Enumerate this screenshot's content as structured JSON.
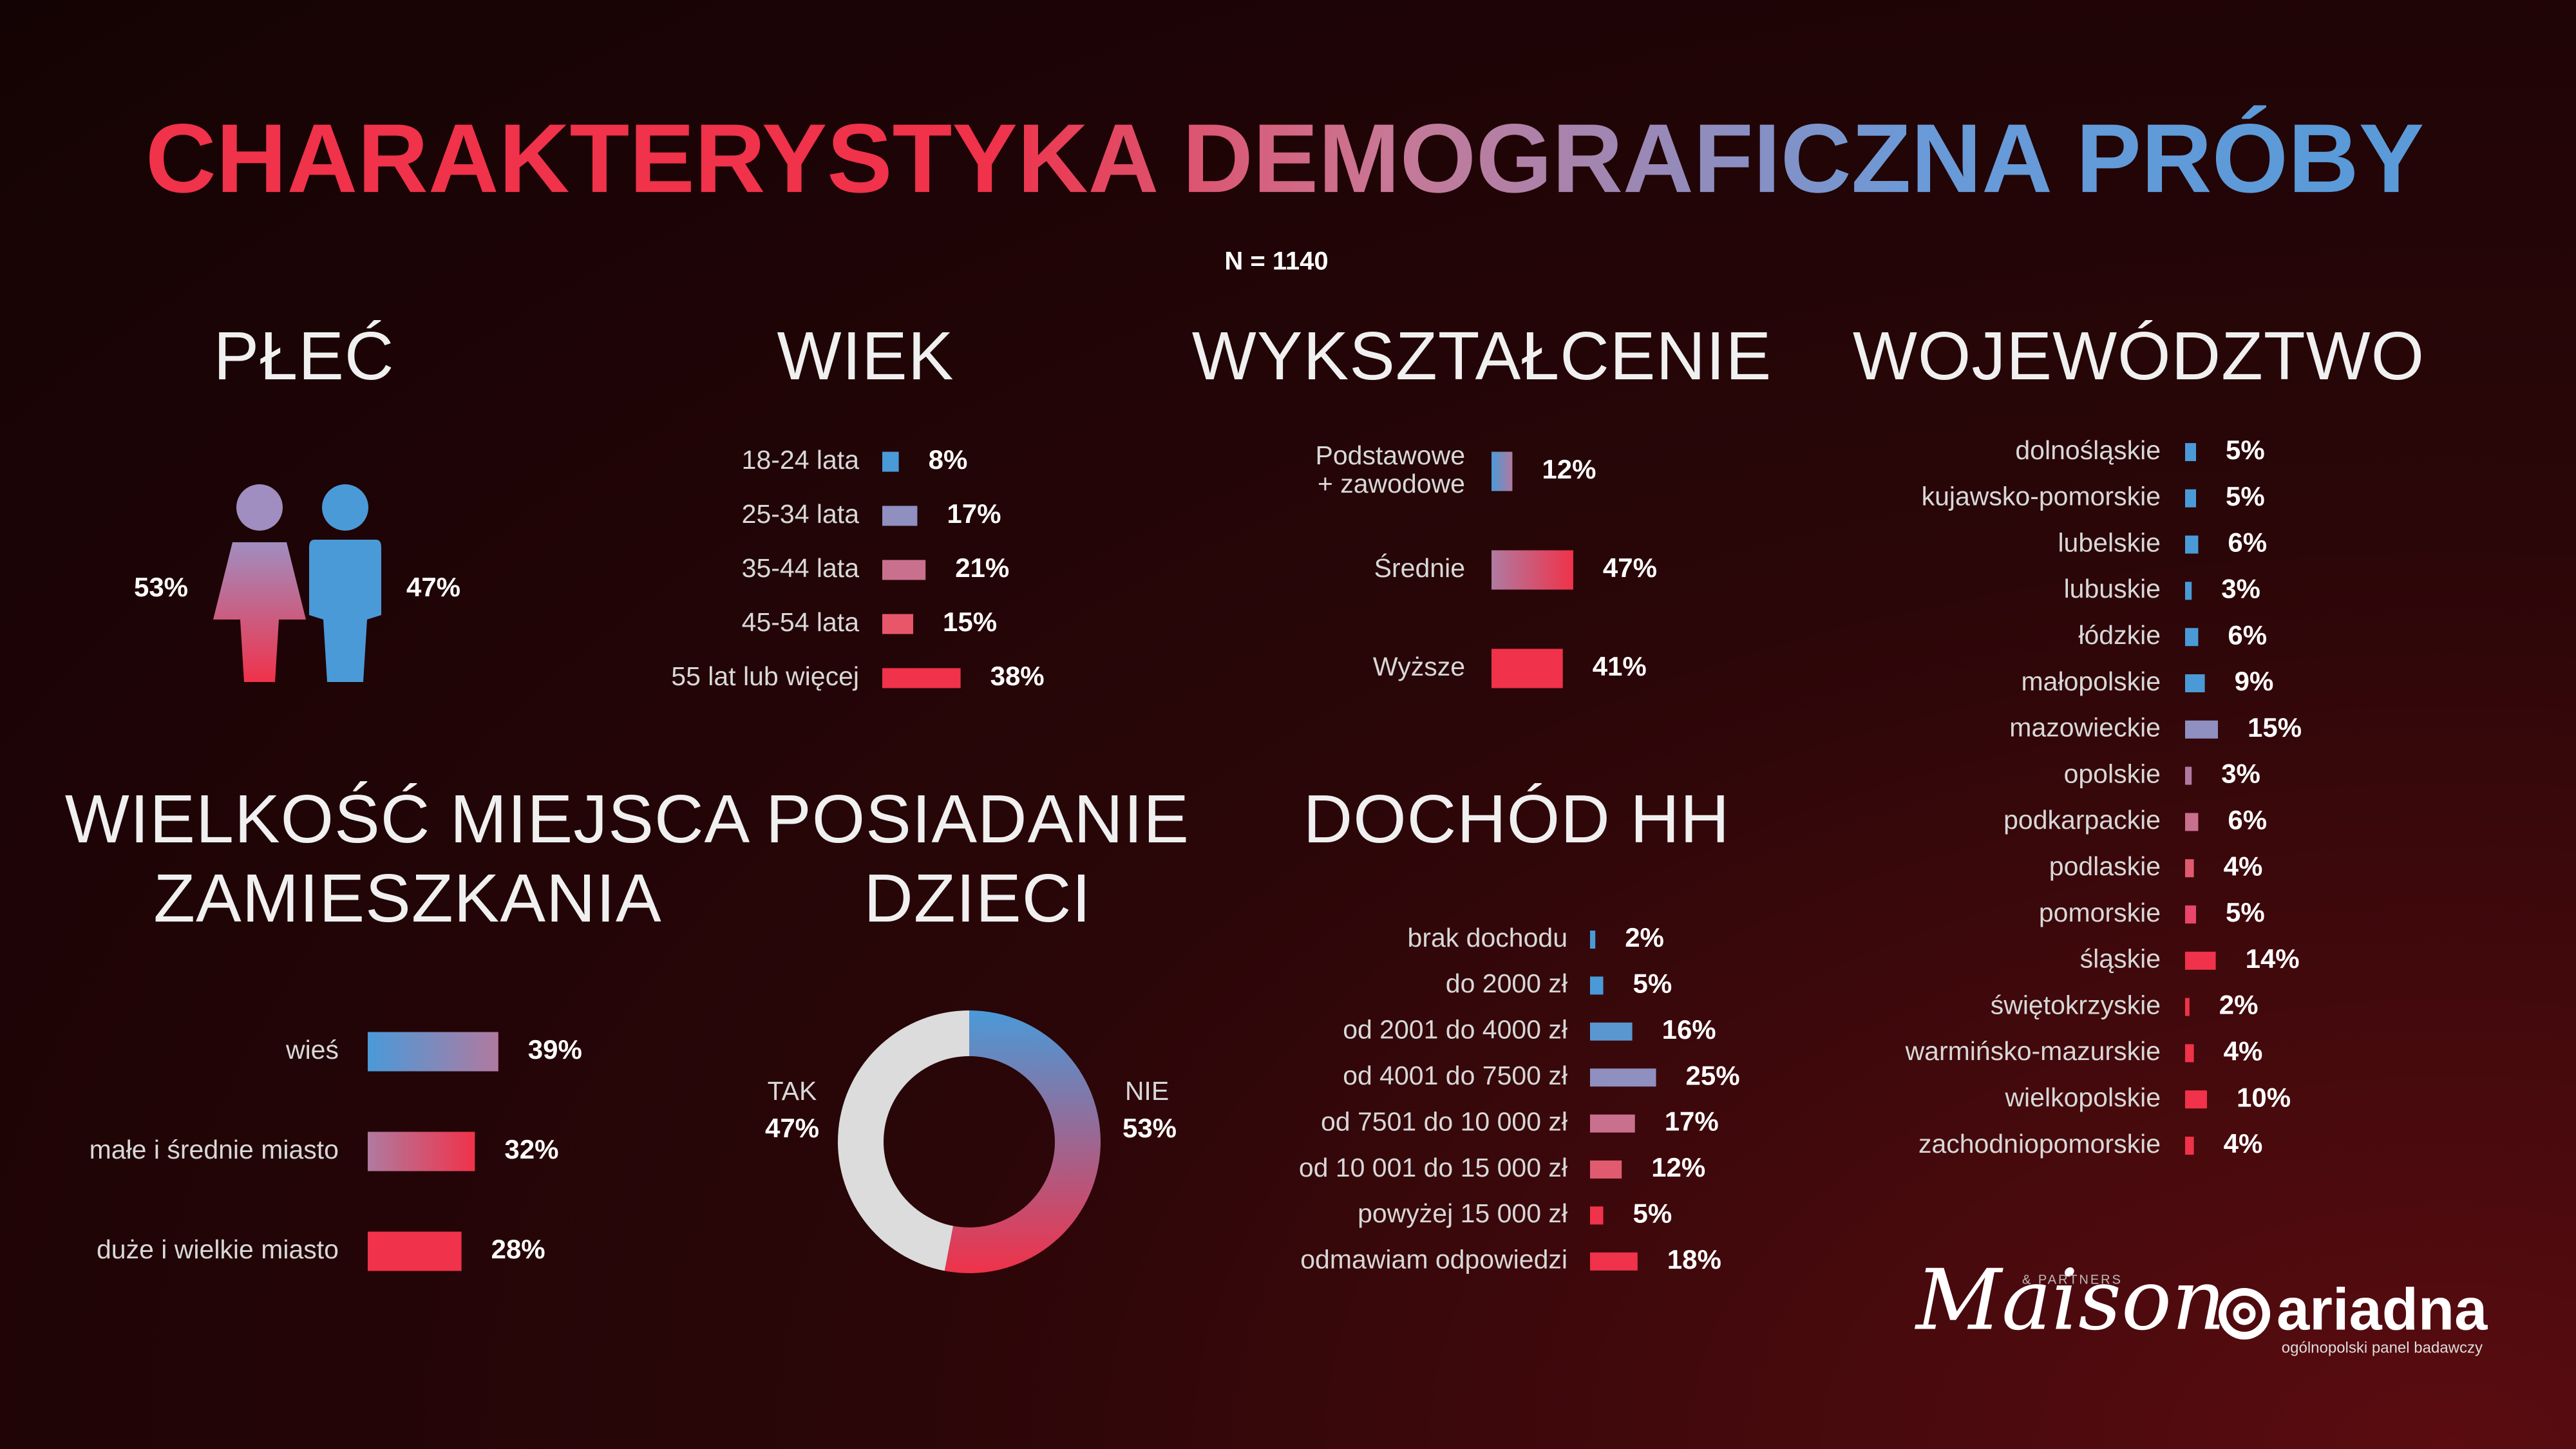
{
  "header": {
    "title": "CHARAKTERYSTYKA DEMOGRAFICZNA PRÓBY",
    "sample": "N = 1140"
  },
  "chart_data": [
    {
      "type": "pictogram",
      "title": "PŁEĆ",
      "values": [
        53,
        47
      ],
      "value_labels": [
        "53%",
        "47%"
      ],
      "colors": [
        "#f0324a",
        "#4a9ad8"
      ]
    },
    {
      "type": "bar",
      "title": "WIEK",
      "categories": [
        "18-24 lata",
        "25-34 lata",
        "35-44 lata",
        "45-54 lata",
        "55 lat lub więcej"
      ],
      "values": [
        8,
        17,
        21,
        15,
        38
      ],
      "value_labels": [
        "8%",
        "17%",
        "21%",
        "15%",
        "38%"
      ],
      "colors": [
        "#4a9ad8",
        "#8f8fc0",
        "#c9708f",
        "#e8566a",
        "#f0324a"
      ]
    },
    {
      "type": "bar",
      "title": "WYKSZTAŁCENIE",
      "categories": [
        "Podstawowe\n+ zawodowe",
        "Średnie",
        "Wyższe"
      ],
      "values": [
        12,
        47,
        41
      ],
      "value_labels": [
        "12%",
        "47%",
        "41%"
      ],
      "colors": [
        "#4a9ad8",
        "#b07aa0",
        "#f0324a"
      ]
    },
    {
      "type": "bar",
      "title": "WOJEWÓDZTWO",
      "categories": [
        "dolnośląskie",
        "kujawsko-pomorskie",
        "lubelskie",
        "lubuskie",
        "łódzkie",
        "małopolskie",
        "mazowieckie",
        "opolskie",
        "podkarpackie",
        "podlaskie",
        "pomorskie",
        "śląskie",
        "świętokrzyskie",
        "warmińsko-mazurskie",
        "wielkopolskie",
        "zachodniopomorskie"
      ],
      "values": [
        5,
        5,
        6,
        3,
        6,
        9,
        15,
        3,
        6,
        4,
        5,
        14,
        2,
        4,
        10,
        4
      ],
      "value_labels": [
        "5%",
        "5%",
        "6%",
        "3%",
        "6%",
        "9%",
        "15%",
        "3%",
        "6%",
        "4%",
        "5%",
        "14%",
        "2%",
        "4%",
        "10%",
        "4%"
      ],
      "colors": [
        "#4a9ad8",
        "#4a9ad8",
        "#4a9ad8",
        "#4a9ad8",
        "#4a9ad8",
        "#4a9ad8",
        "#8f8fc0",
        "#b07aa0",
        "#c9708f",
        "#e05a70",
        "#e8466a",
        "#f0324a",
        "#f0324a",
        "#f0324a",
        "#f0324a",
        "#f0324a"
      ]
    },
    {
      "type": "bar",
      "title": "WIELKOŚĆ MIEJSCA\nZAMIESZKANIA",
      "categories": [
        "wieś",
        "małe i średnie miasto",
        "duże i wielkie miasto"
      ],
      "values": [
        39,
        32,
        28
      ],
      "value_labels": [
        "39%",
        "32%",
        "28%"
      ],
      "colors": [
        "#4a9ad8",
        "#b07aa0",
        "#f0324a"
      ]
    },
    {
      "type": "donut",
      "title": "POSIADANIE\nDZIECI",
      "categories": [
        "TAK",
        "NIE"
      ],
      "values": [
        47,
        53
      ],
      "value_labels": [
        "47%",
        "53%"
      ],
      "colors": [
        "#dcdcdc",
        "#4a9ad8"
      ]
    },
    {
      "type": "bar",
      "title": "DOCHÓD HH",
      "categories": [
        "brak dochodu",
        "do 2000 zł",
        "od 2001 do 4000 zł",
        "od 4001 do 7500 zł",
        "od 7501 do 10 000 zł",
        "od 10 001 do 15 000 zł",
        "powyżej 15 000 zł",
        "odmawiam odpowiedzi"
      ],
      "values": [
        2,
        5,
        16,
        25,
        17,
        12,
        5,
        18
      ],
      "value_labels": [
        "2%",
        "5%",
        "16%",
        "25%",
        "17%",
        "12%",
        "5%",
        "18%"
      ],
      "colors": [
        "#4a9ad8",
        "#4a9ad8",
        "#5a96d0",
        "#8f8fc0",
        "#c9708f",
        "#e05a70",
        "#f0324a",
        "#f0324a"
      ]
    }
  ],
  "footer": {
    "logo_1": "Maison",
    "logo_1_sub": "& PARTNERS",
    "logo_2": "ariadna",
    "logo_2_sub": "ogólnopolski panel badawczy"
  }
}
